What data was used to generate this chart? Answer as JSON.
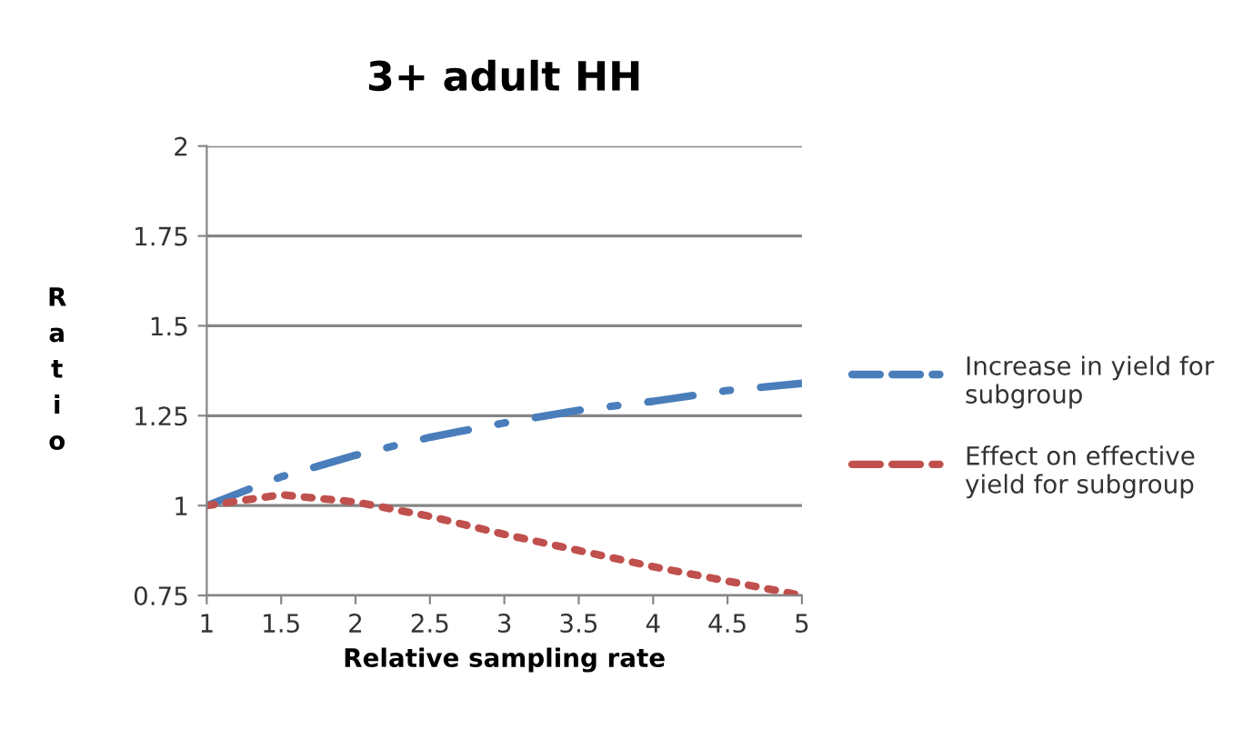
{
  "chart_data": {
    "type": "line",
    "title": "3+ adult HH",
    "xlabel": "Relative sampling rate",
    "ylabel": "Ratio",
    "x": [
      1,
      1.5,
      2,
      2.5,
      3,
      3.5,
      4,
      4.5,
      5
    ],
    "series": [
      {
        "name": "Increase in yield for subgroup",
        "color": "#4a7ebb",
        "line_style": "dashdot",
        "values": [
          1.0,
          1.08,
          1.14,
          1.19,
          1.23,
          1.265,
          1.29,
          1.32,
          1.34
        ]
      },
      {
        "name": "Effect on effective yield for subgroup",
        "color": "#c0504d",
        "line_style": "dotted",
        "values": [
          1.0,
          1.03,
          1.01,
          0.97,
          0.92,
          0.875,
          0.83,
          0.79,
          0.75
        ]
      }
    ],
    "xlim": [
      1,
      5
    ],
    "xticks": [
      1,
      1.5,
      2,
      2.5,
      3,
      3.5,
      4,
      4.5,
      5
    ],
    "ylim": [
      0.75,
      2
    ],
    "yticks": [
      0.75,
      1,
      1.25,
      1.5,
      1.75,
      2
    ],
    "grid": "y",
    "legend": "right",
    "marker": "none"
  }
}
